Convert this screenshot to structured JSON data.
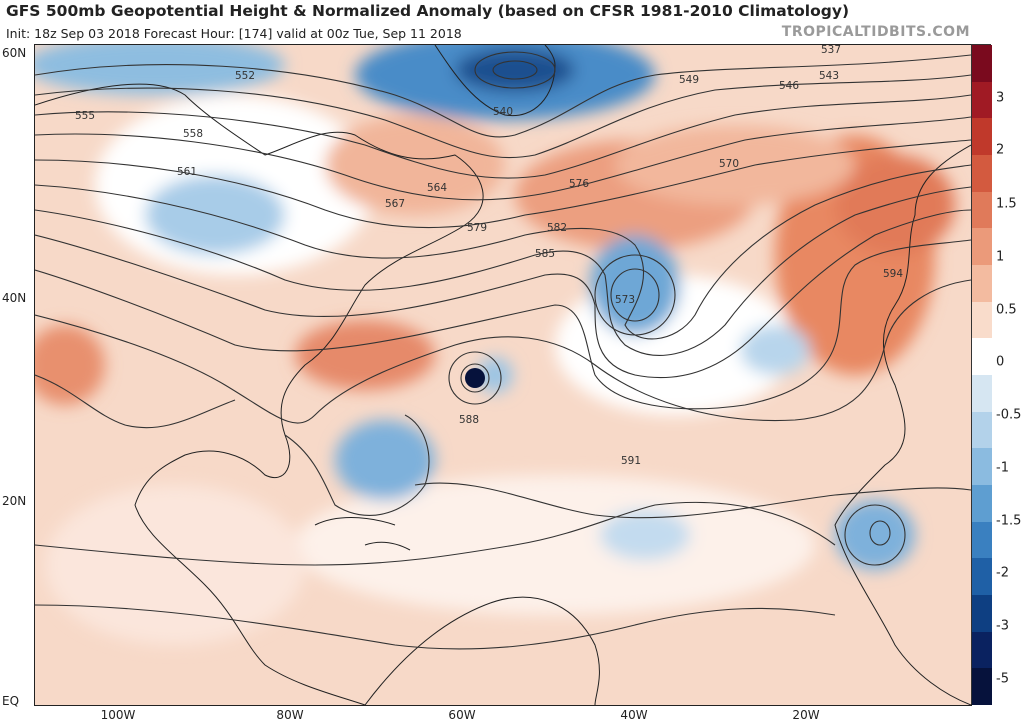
{
  "header": {
    "title": "GFS 500mb Geopotential Height & Normalized Anomaly (based on CFSR 1981-2010 Climatology)",
    "subtitle": "Init: 18z Sep 03 2018   Forecast Hour: [174]   valid at 00z Tue, Sep 11 2018",
    "credit": "TROPICALTIDBITS.COM"
  },
  "axes": {
    "lat_labels": [
      "60N",
      "40N",
      "20N",
      "EQ"
    ],
    "lon_labels": [
      "100W",
      "80W",
      "60W",
      "40W",
      "20W"
    ]
  },
  "colorbar": {
    "ticks": [
      "3",
      "2",
      "1.5",
      "1",
      "0.5",
      "0",
      "-0.5",
      "-1",
      "-1.5",
      "-2",
      "-3",
      "-5"
    ],
    "colors": [
      "#7a0a1e",
      "#a01a24",
      "#c0392b",
      "#d35a3f",
      "#e07a5a",
      "#eb9a7a",
      "#f3bba0",
      "#f9dccb",
      "#ffffff",
      "#d6e6f2",
      "#b3d2ea",
      "#8bbbe0",
      "#5e9ed1",
      "#3a80c0",
      "#1f60a6",
      "#0e3f82",
      "#0a2260",
      "#06123c"
    ]
  },
  "contour_labels": [
    "537",
    "543",
    "546",
    "549",
    "552",
    "555",
    "558",
    "561",
    "564",
    "567",
    "570",
    "573",
    "576",
    "579",
    "582",
    "585",
    "588",
    "591",
    "594",
    "540"
  ],
  "map": {
    "features": [
      "Deep low near southern Greenland (540 dam)",
      "Closed low in central Atlantic (573 dam)",
      "Tropical cyclone near 60W (588 dam)",
      "Ridge over western Europe (594 dam)"
    ]
  }
}
